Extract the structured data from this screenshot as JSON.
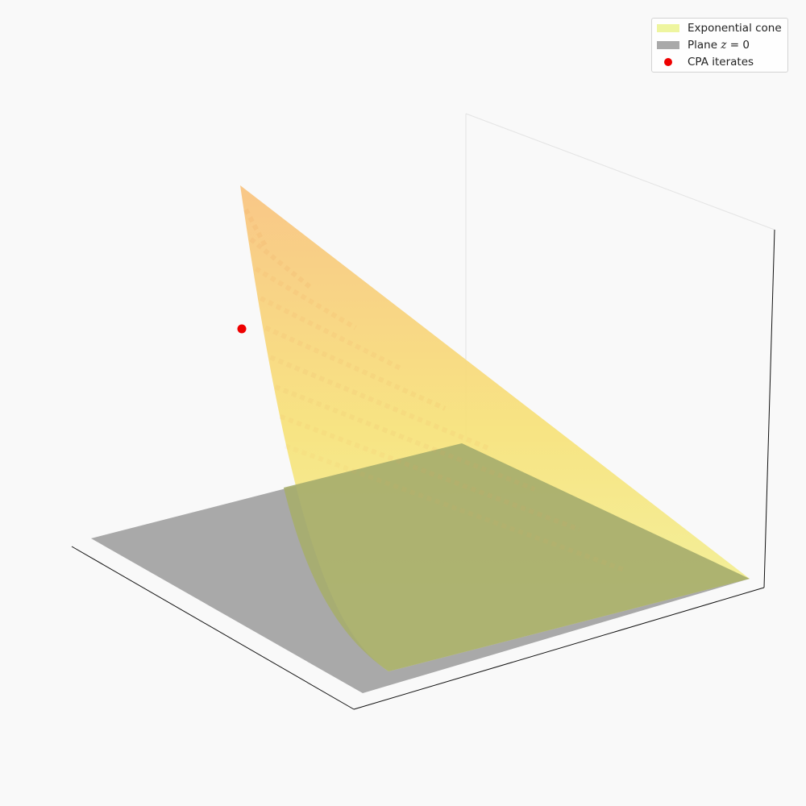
{
  "chart_data": {
    "type": "surface3d",
    "title": "",
    "xlabel": "",
    "ylabel": "",
    "zlabel": "",
    "axes_visible": false,
    "grid": false,
    "legend_position": "top-right",
    "colors": {
      "background": "#f9f9f9",
      "plane": "#a3a3a3",
      "cone_top": "#f9c37f",
      "cone_mid": "#f7e27a",
      "cone_low": "#f1f59e",
      "iterate": "#ee0000"
    },
    "series": [
      {
        "name": "Exponential cone",
        "kind": "surface",
        "color": "#eef59f"
      },
      {
        "name": "Plane z = 0",
        "kind": "surface",
        "color": "#a9a9a9"
      },
      {
        "name": "CPA iterates",
        "kind": "scatter",
        "color": "#ee0000",
        "points": 1
      }
    ]
  },
  "legend": {
    "items": [
      {
        "label": "Exponential cone",
        "pre": "",
        "math": "",
        "post": "",
        "color": "#eef59f",
        "kind": "patch"
      },
      {
        "label": "Plane z = 0",
        "pre": "Plane ",
        "math": "z",
        "post": " = 0",
        "color": "#a9a9a9",
        "kind": "patch"
      },
      {
        "label": "CPA iterates",
        "pre": "",
        "math": "",
        "post": "",
        "color": "#ee0000",
        "kind": "marker"
      }
    ]
  }
}
